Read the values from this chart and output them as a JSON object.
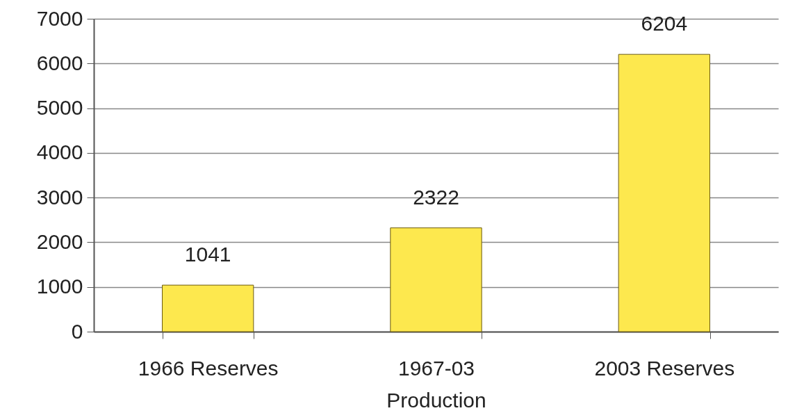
{
  "chart_data": {
    "type": "bar",
    "categories": [
      "1966 Reserves",
      "1967-03\nProduction",
      "2003 Reserves"
    ],
    "values": [
      1041,
      2322,
      6204
    ],
    "color": "#fde84e",
    "ylim": [
      0,
      7000
    ],
    "yticks": [
      0,
      1000,
      2000,
      3000,
      4000,
      5000,
      6000,
      7000
    ],
    "grid": "y",
    "data_labels": true
  }
}
